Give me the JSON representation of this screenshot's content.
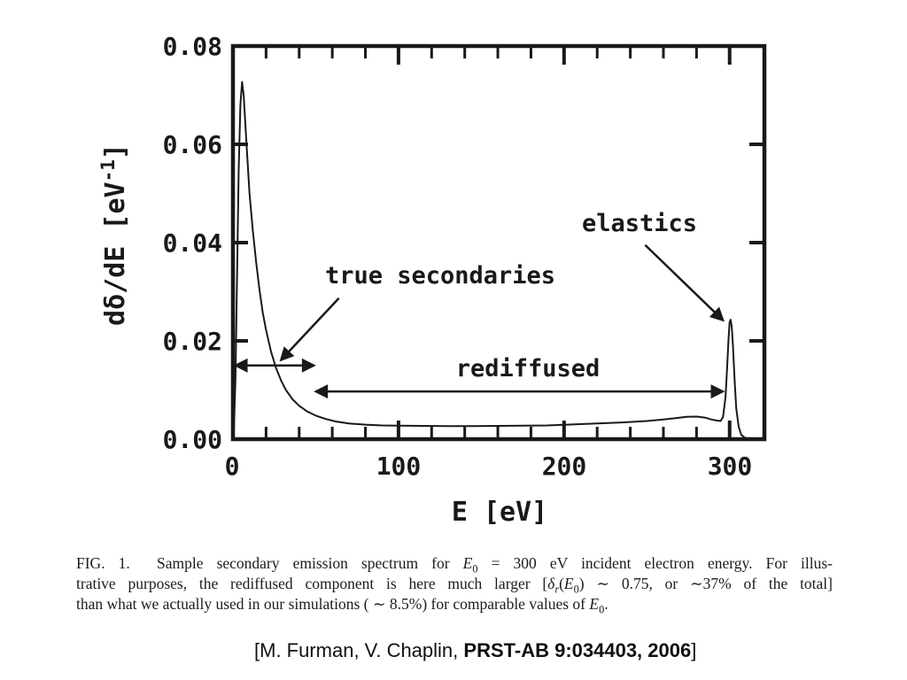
{
  "colors": {
    "ink": "#191919",
    "background": "#ffffff"
  },
  "chart_data": {
    "type": "line",
    "title": "",
    "xlabel": "E [eV]",
    "ylabel": "dδ/dE [eV⁻¹]",
    "ylabel_parts": {
      "main": "dδ/dE [eV",
      "sup": "-1",
      "close": "]"
    },
    "xlim": [
      0,
      321
    ],
    "ylim": [
      0,
      0.08
    ],
    "grid": false,
    "legend": false,
    "axes": {
      "x": {
        "labels": [
          "0",
          "100",
          "200",
          "300"
        ],
        "label_vals": [
          0,
          100,
          200,
          300
        ],
        "major": [
          100,
          200,
          300
        ],
        "minor": [
          20,
          40,
          60,
          80,
          120,
          140,
          160,
          180,
          220,
          240,
          260,
          280
        ]
      },
      "y": {
        "labels": [
          "0.00",
          "0.02",
          "0.04",
          "0.06",
          "0.08"
        ],
        "label_vals": [
          0,
          0.02,
          0.04,
          0.06,
          0.08
        ],
        "major": [
          0.02,
          0.04,
          0.06
        ]
      }
    },
    "series": [
      {
        "name": "secondary emission spectrum dδ/dE for E0 = 300 eV",
        "points": [
          [
            0.5,
            0.001
          ],
          [
            1.5,
            0.012
          ],
          [
            2.5,
            0.034
          ],
          [
            3.5,
            0.055
          ],
          [
            4.5,
            0.068
          ],
          [
            5.5,
            0.0727
          ],
          [
            6.5,
            0.07
          ],
          [
            8,
            0.061
          ],
          [
            10,
            0.05
          ],
          [
            12,
            0.0425
          ],
          [
            14,
            0.036
          ],
          [
            16,
            0.0305
          ],
          [
            18,
            0.0258
          ],
          [
            20,
            0.0222
          ],
          [
            23,
            0.0178
          ],
          [
            26,
            0.0145
          ],
          [
            29,
            0.012
          ],
          [
            32,
            0.01
          ],
          [
            36,
            0.0081
          ],
          [
            40,
            0.0068
          ],
          [
            45,
            0.0056
          ],
          [
            50,
            0.0048
          ],
          [
            56,
            0.0041
          ],
          [
            62,
            0.0036
          ],
          [
            70,
            0.0032
          ],
          [
            80,
            0.00295
          ],
          [
            90,
            0.0028
          ],
          [
            100,
            0.00275
          ],
          [
            115,
            0.0027
          ],
          [
            130,
            0.00265
          ],
          [
            145,
            0.00265
          ],
          [
            160,
            0.0027
          ],
          [
            175,
            0.00275
          ],
          [
            190,
            0.0028
          ],
          [
            205,
            0.003
          ],
          [
            220,
            0.0032
          ],
          [
            235,
            0.0034
          ],
          [
            250,
            0.0037
          ],
          [
            260,
            0.004
          ],
          [
            268,
            0.0043
          ],
          [
            274,
            0.00455
          ],
          [
            280,
            0.0046
          ],
          [
            285,
            0.0044
          ],
          [
            289,
            0.004
          ],
          [
            292,
            0.0038
          ],
          [
            294.5,
            0.0037
          ],
          [
            296,
            0.0045
          ],
          [
            297.5,
            0.0085
          ],
          [
            298.5,
            0.0145
          ],
          [
            299.3,
            0.02
          ],
          [
            300,
            0.0238
          ],
          [
            300.6,
            0.0243
          ],
          [
            301.3,
            0.0228
          ],
          [
            302,
            0.019
          ],
          [
            303,
            0.012
          ],
          [
            304,
            0.0063
          ],
          [
            305.5,
            0.0025
          ],
          [
            307,
            0.0009
          ],
          [
            309,
            0.0003
          ],
          [
            312,
            0.0001
          ],
          [
            316,
            5e-05
          ],
          [
            320,
            5e-05
          ]
        ]
      }
    ],
    "features": {
      "true_secondary_peak": {
        "E_eV": 5,
        "value": 0.073
      },
      "elastic_peak": {
        "E_eV": 300,
        "value": 0.024
      },
      "rediffused_plateau_value": 0.003
    },
    "annotations": [
      {
        "label": "true secondaries",
        "arrow_span_eV": [
          0.5,
          50
        ],
        "arrow_y": 0.015,
        "pointer": {
          "from": [
            64,
            0.0287
          ],
          "to": [
            29,
            0.0161
          ]
        }
      },
      {
        "label": "rediffused",
        "arrow_span_eV": [
          49,
          297
        ],
        "arrow_y": 0.0097
      },
      {
        "label": "elastics",
        "pointer": {
          "from": [
            249,
            0.0395
          ],
          "to": [
            296,
            0.0242
          ]
        }
      }
    ]
  },
  "annotation_labels": {
    "true_secondaries": "true secondaries",
    "rediffused": "rediffused",
    "elastics": "elastics"
  },
  "caption": {
    "lines": [
      [
        {
          "t": "FIG. 1.  Sample secondary emission spectrum for "
        },
        {
          "t": "E",
          "i": 1
        },
        {
          "t": "0",
          "sub": 1
        },
        {
          "t": " = 300 eV incident electron energy. For illus-"
        }
      ],
      [
        {
          "t": "trative purposes, the rediffused component is here much larger ["
        },
        {
          "t": "δ",
          "i": 1
        },
        {
          "t": "r",
          "i": 1,
          "sub": 1
        },
        {
          "t": "("
        },
        {
          "t": "E",
          "i": 1
        },
        {
          "t": "0",
          "sub": 1
        },
        {
          "t": ") ∼ 0.75, or ∼37% of the total]"
        }
      ],
      [
        {
          "t": "than what we actually used in our simulations ( ∼ 8.5%) for comparable values of "
        },
        {
          "t": "E",
          "i": 1
        },
        {
          "t": "0",
          "sub": 1
        },
        {
          "t": "."
        }
      ]
    ]
  },
  "attribution": {
    "segments": [
      {
        "t": "[M. Furman, V. Chaplin, "
      },
      {
        "t": "PRST-AB 9:034403, 2006",
        "b": 1
      },
      {
        "t": "]"
      }
    ]
  }
}
